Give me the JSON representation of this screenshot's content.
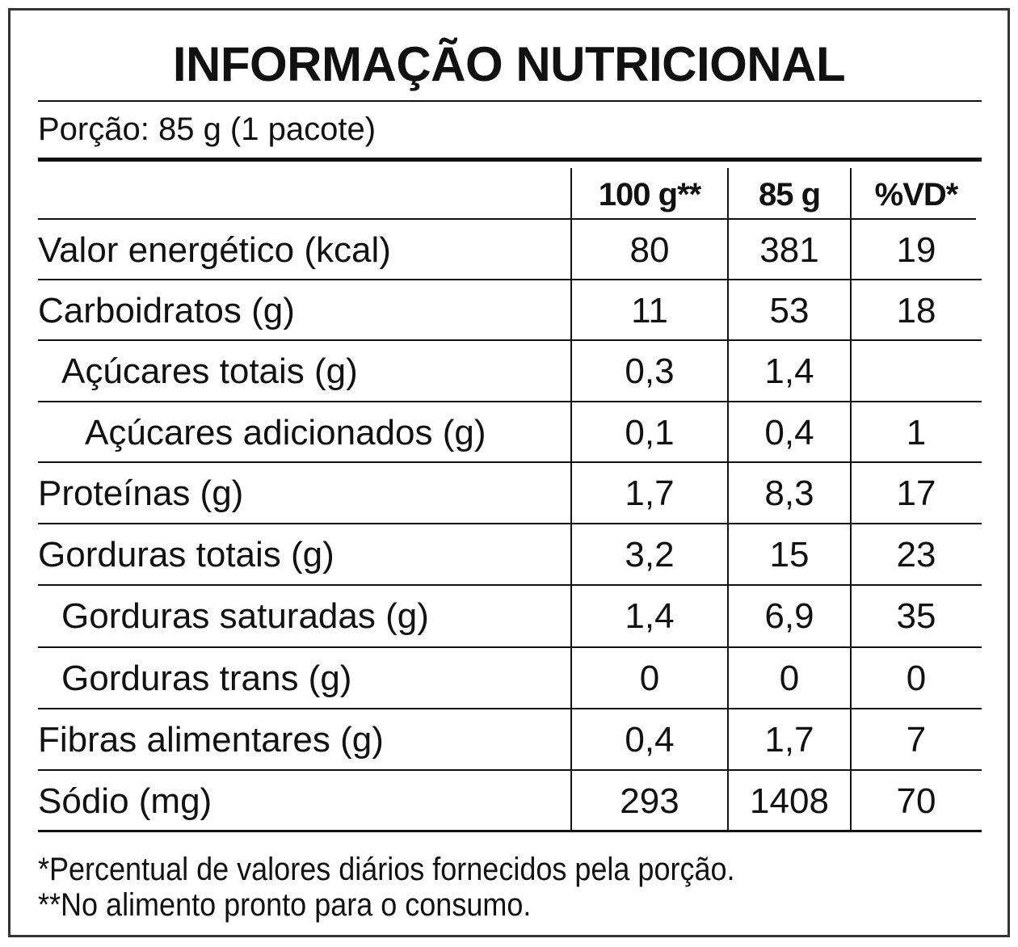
{
  "title": "INFORMAÇÃO NUTRICIONAL",
  "portion": "Porção: 85 g (1 pacote)",
  "columns": [
    "100 g**",
    "85 g",
    "%VD*"
  ],
  "rows": [
    {
      "label": "Valor energético (kcal)",
      "indent": 0,
      "per100": "80",
      "perPortion": "381",
      "vd": "19"
    },
    {
      "label": "Carboidratos (g)",
      "indent": 0,
      "per100": "11",
      "perPortion": "53",
      "vd": "18"
    },
    {
      "label": "Açúcares totais (g)",
      "indent": 1,
      "per100": "0,3",
      "perPortion": "1,4",
      "vd": ""
    },
    {
      "label": "Açúcares adicionados (g)",
      "indent": 2,
      "per100": "0,1",
      "perPortion": "0,4",
      "vd": "1"
    },
    {
      "label": "Proteínas (g)",
      "indent": 0,
      "per100": "1,7",
      "perPortion": "8,3",
      "vd": "17"
    },
    {
      "label": "Gorduras totais (g)",
      "indent": 0,
      "per100": "3,2",
      "perPortion": "15",
      "vd": "23"
    },
    {
      "label": "Gorduras saturadas (g)",
      "indent": 1,
      "per100": "1,4",
      "perPortion": "6,9",
      "vd": "35"
    },
    {
      "label": "Gorduras trans (g)",
      "indent": 1,
      "per100": "0",
      "perPortion": "0",
      "vd": "0"
    },
    {
      "label": "Fibras alimentares (g)",
      "indent": 0,
      "per100": "0,4",
      "perPortion": "1,7",
      "vd": "7"
    },
    {
      "label": "Sódio (mg)",
      "indent": 0,
      "per100": "293",
      "perPortion": "1408",
      "vd": "70"
    }
  ],
  "footnotes": [
    "*Percentual de valores diários fornecidos pela porção.",
    "**No alimento pronto para o consumo."
  ]
}
